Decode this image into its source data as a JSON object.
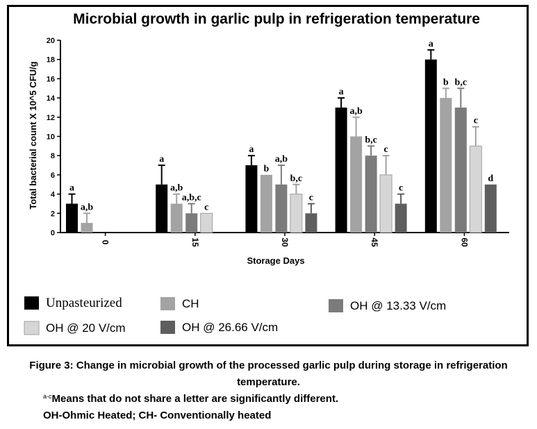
{
  "chart_data": {
    "type": "bar",
    "title": "Microbial growth in garlic pulp in refrigeration temperature",
    "xlabel": "Storage Days",
    "ylabel": "Total bacterial count X 10^5 CFU/g",
    "ylim": [
      0,
      20
    ],
    "yticks": [
      0,
      2,
      4,
      6,
      8,
      10,
      12,
      14,
      16,
      18,
      20
    ],
    "categories": [
      "0",
      "15",
      "30",
      "45",
      "60"
    ],
    "series": [
      {
        "name": "Unpasteurized",
        "color": "#000000",
        "values": [
          3,
          5,
          7,
          13,
          18
        ],
        "errors": [
          1,
          2,
          1,
          1,
          1
        ],
        "labels": [
          "a",
          "a",
          "a",
          "a",
          "a"
        ]
      },
      {
        "name": "CH",
        "color": "#a3a3a3",
        "values": [
          1,
          3,
          6,
          10,
          14
        ],
        "errors": [
          1,
          1,
          0,
          2,
          1
        ],
        "labels": [
          "a,b",
          "a,b",
          "b",
          "a,b",
          "b"
        ]
      },
      {
        "name": "OH @ 13.33 V/cm",
        "color": "#7b7b7b",
        "values": [
          0,
          2,
          5,
          8,
          13
        ],
        "errors": [
          0,
          1,
          2,
          1,
          2
        ],
        "labels": [
          "",
          "a,b,c",
          "a,b",
          "b,c",
          "b,c"
        ]
      },
      {
        "name": "OH @ 20 V/cm",
        "color": "#d6d6d6",
        "values": [
          0,
          2,
          4,
          6,
          9
        ],
        "errors": [
          0,
          0,
          1,
          2,
          2
        ],
        "labels": [
          "",
          "c",
          "b,c",
          "c",
          "c"
        ]
      },
      {
        "name": "OH @ 26.66 V/cm",
        "color": "#5e5e5e",
        "values": [
          0,
          0,
          2,
          3,
          5
        ],
        "errors": [
          0,
          0,
          1,
          1,
          0
        ],
        "labels": [
          "",
          "",
          "c",
          "c",
          "d"
        ]
      }
    ],
    "grid": false,
    "legend_position": "bottom"
  },
  "caption": {
    "title": "Figure 3: Change in microbial growth of the processed garlic pulp during storage in refrigeration temperature.",
    "note_superscript": "a-c",
    "note_text": "Means that do not share a letter are significantly different.",
    "abbreviations": "OH-Ohmic Heated; CH- Conventionally heated"
  }
}
